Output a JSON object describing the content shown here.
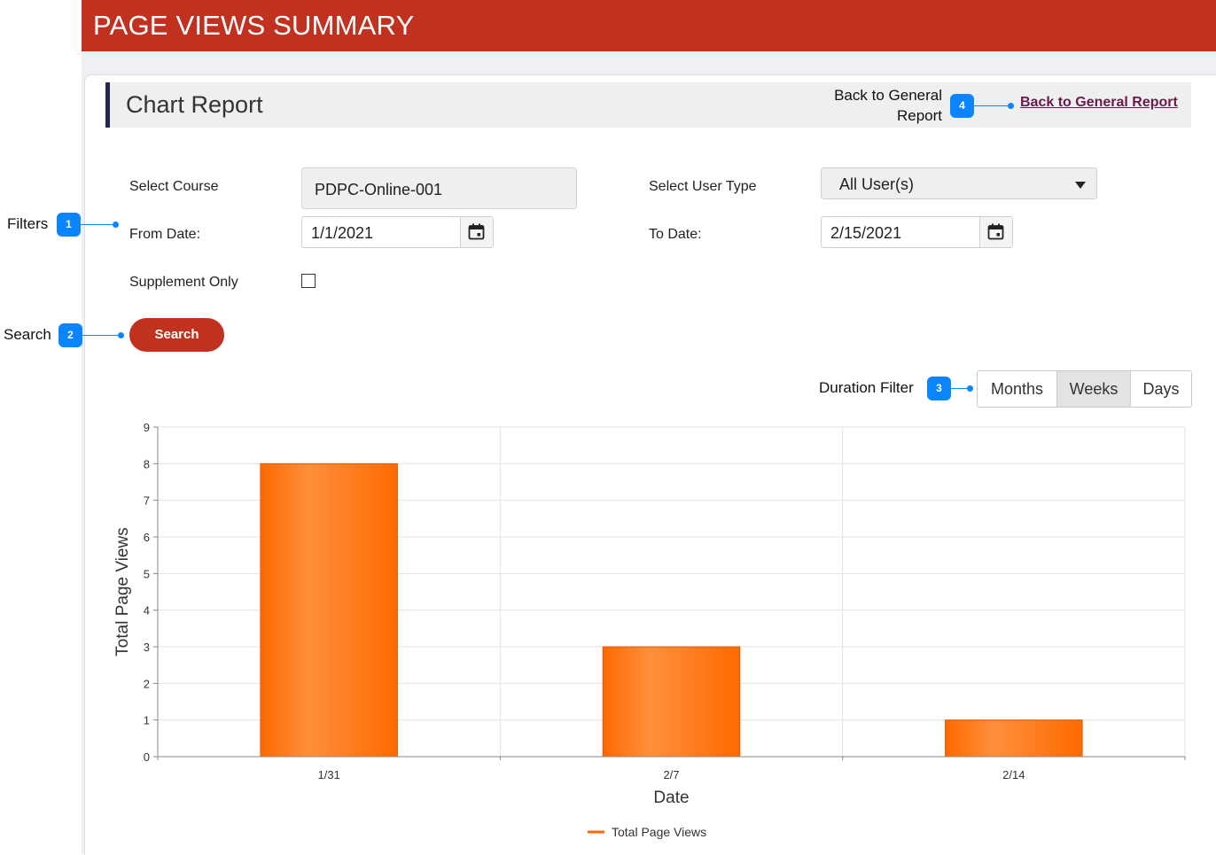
{
  "header": {
    "title": "PAGE VIEWS SUMMARY"
  },
  "report": {
    "title": "Chart Report",
    "back_note": "Back to General Report",
    "back_link": "Back to General Report"
  },
  "annotations": {
    "filters": {
      "label": "Filters",
      "num": "1"
    },
    "search": {
      "label": "Search",
      "num": "2"
    },
    "duration": {
      "label": "Duration Filter",
      "num": "3"
    },
    "back": {
      "num": "4"
    }
  },
  "filters": {
    "course_label": "Select Course",
    "course_value": "PDPC-Online-001",
    "user_type_label": "Select User Type",
    "user_type_value": "All User(s)",
    "from_label": "From Date:",
    "from_value": "1/1/2021",
    "to_label": "To Date:",
    "to_value": "2/15/2021",
    "supplement_label": "Supplement Only",
    "supplement_checked": false
  },
  "search_button": "Search",
  "duration": {
    "options": [
      "Months",
      "Weeks",
      "Days"
    ],
    "selected": "Weeks"
  },
  "colors": {
    "brand": "#c0311f",
    "accent": "#0a84ff",
    "bar": "#ff6a00",
    "link": "#6b1a4a"
  },
  "icons": {
    "calendar": "calendar-icon",
    "dropdown": "chevron-down-icon"
  },
  "chart_data": {
    "type": "bar",
    "categories": [
      "1/31",
      "2/7",
      "2/14"
    ],
    "series": [
      {
        "name": "Total Page Views",
        "values": [
          8,
          3,
          1
        ]
      }
    ],
    "xlabel": "Date",
    "ylabel": "Total Page Views",
    "ylim": [
      0,
      9
    ],
    "yticks": [
      "0",
      "1",
      "2",
      "3",
      "4",
      "5",
      "6",
      "7",
      "8",
      "9"
    ],
    "grid": true,
    "legend": "bottom-center"
  }
}
